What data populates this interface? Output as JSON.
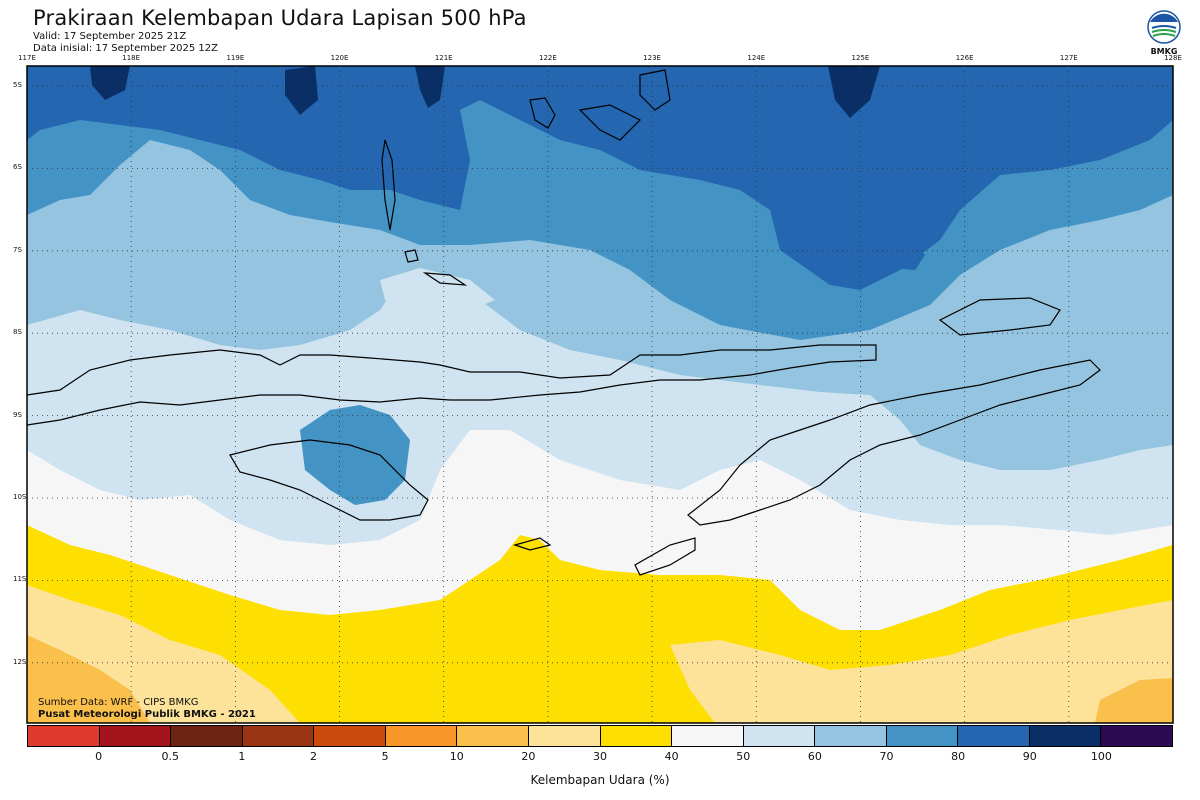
{
  "header": {
    "title": "Prakiraan Kelembapan Udara Lapisan 500 hPa",
    "valid": "Valid: 17 September 2025 21Z",
    "init": "Data inisial: 17 September 2025 12Z"
  },
  "logo": {
    "text": "BMKG",
    "icon": "bmkg-logo-icon"
  },
  "map": {
    "lon_ticks": [
      "117E",
      "118E",
      "119E",
      "120E",
      "121E",
      "122E",
      "123E",
      "124E",
      "125E",
      "126E",
      "127E",
      "128E"
    ],
    "lat_ticks": [
      "5S",
      "6S",
      "7S",
      "8S",
      "9S",
      "10S",
      "11S",
      "12S"
    ]
  },
  "credits": {
    "source": "Sumber Data: WRF - CIPS BMKG",
    "org": "Pusat Meteorologi Publik BMKG - 2021"
  },
  "legend": {
    "title": "Kelembapan Udara (%)",
    "labels": [
      "0",
      "0.5",
      "1",
      "2",
      "5",
      "10",
      "20",
      "30",
      "40",
      "50",
      "60",
      "70",
      "80",
      "90",
      "100"
    ],
    "colors": [
      "#e03a2e",
      "#a3141d",
      "#6e2414",
      "#993513",
      "#cc4a0c",
      "#f8962a",
      "#fbbf4c",
      "#fde29a",
      "#fde001",
      "#f6f6f6",
      "#cfe3f0",
      "#94c4df",
      "#4393c4",
      "#2466af",
      "#0a2f66",
      "#2c0b52"
    ]
  }
}
